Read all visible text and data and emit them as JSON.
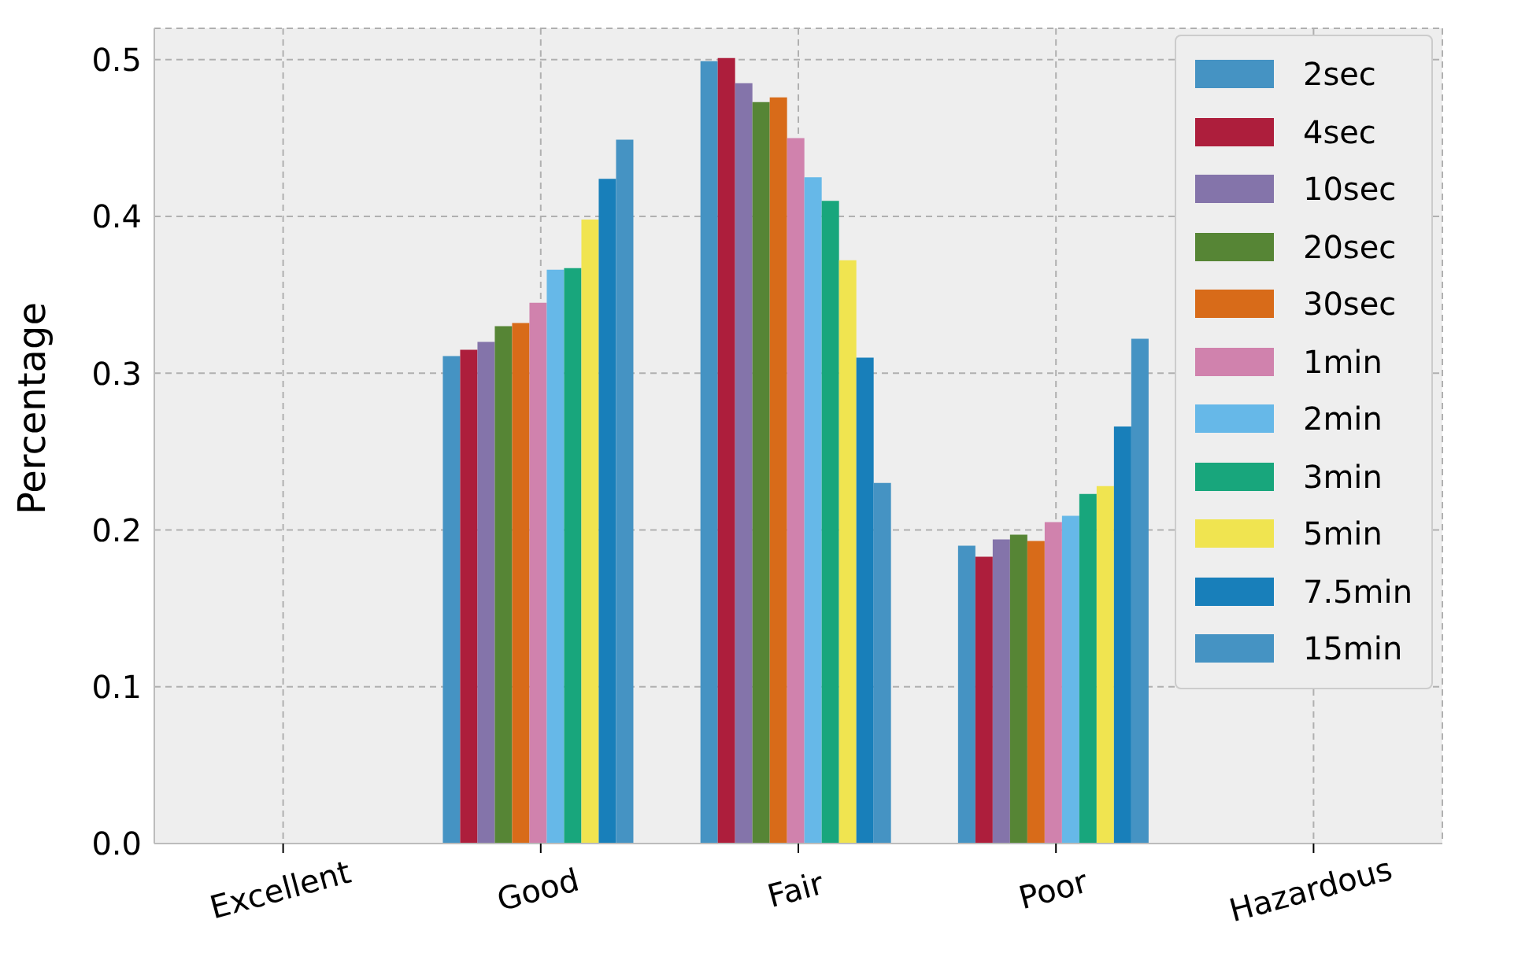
{
  "chart_data": {
    "type": "bar",
    "ylabel": "Percentage",
    "categories": [
      "Excellent",
      "Good",
      "Fair",
      "Poor",
      "Hazardous"
    ],
    "series": [
      {
        "name": "2sec",
        "color": "#4593c3",
        "values": [
          0,
          0.311,
          0.499,
          0.19,
          0
        ]
      },
      {
        "name": "4sec",
        "color": "#ad1e3c",
        "values": [
          0,
          0.315,
          0.501,
          0.183,
          0
        ]
      },
      {
        "name": "10sec",
        "color": "#8474aa",
        "values": [
          0,
          0.32,
          0.485,
          0.194,
          0
        ]
      },
      {
        "name": "20sec",
        "color": "#568535",
        "values": [
          0,
          0.33,
          0.473,
          0.197,
          0
        ]
      },
      {
        "name": "30sec",
        "color": "#d86b19",
        "values": [
          0,
          0.332,
          0.476,
          0.193,
          0
        ]
      },
      {
        "name": "1min",
        "color": "#d082ad",
        "values": [
          0,
          0.345,
          0.45,
          0.205,
          0
        ]
      },
      {
        "name": "2min",
        "color": "#66b8e8",
        "values": [
          0,
          0.366,
          0.425,
          0.209,
          0
        ]
      },
      {
        "name": "3min",
        "color": "#18a67c",
        "values": [
          0,
          0.367,
          0.41,
          0.223,
          0
        ]
      },
      {
        "name": "5min",
        "color": "#f0e450",
        "values": [
          0,
          0.398,
          0.372,
          0.228,
          0
        ]
      },
      {
        "name": "7.5min",
        "color": "#187fba",
        "values": [
          0,
          0.424,
          0.31,
          0.266,
          0
        ]
      },
      {
        "name": "15min",
        "color": "#4593c3",
        "values": [
          0,
          0.449,
          0.23,
          0.322,
          0
        ]
      }
    ],
    "ylim": [
      0,
      0.52
    ],
    "yticks": [
      {
        "value": 0,
        "label": "0.0"
      },
      0.1,
      0.2,
      0.3,
      0.4,
      0.5
    ],
    "grid": true,
    "legend": "top right"
  }
}
